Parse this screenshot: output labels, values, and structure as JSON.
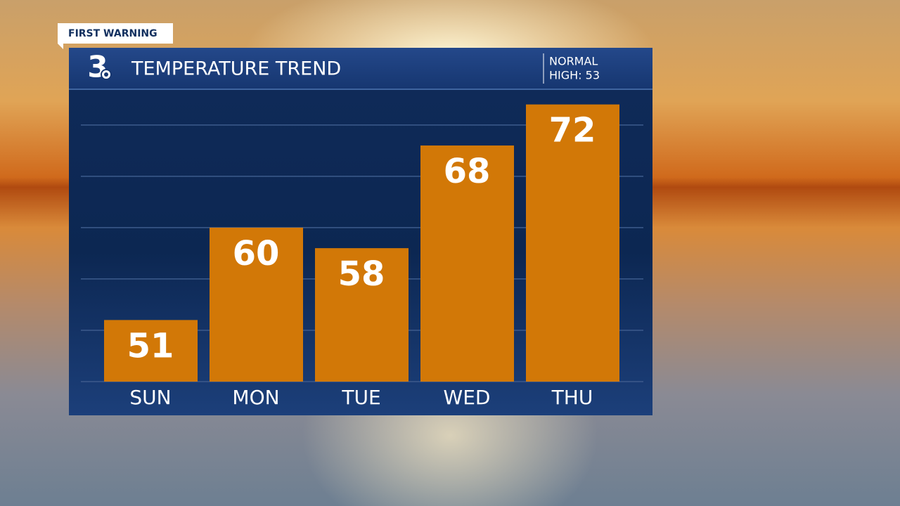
{
  "brand": "FIRST WARNING",
  "logo": "3",
  "chart_data": {
    "type": "bar",
    "title": "TEMPERATURE TREND",
    "annotations": [
      "NORMAL",
      "HIGH: 53"
    ],
    "categories": [
      "SUN",
      "MON",
      "TUE",
      "WED",
      "THU"
    ],
    "values": [
      51,
      60,
      58,
      68,
      72
    ],
    "color": "#d27807",
    "ylim": [
      45,
      73
    ],
    "yticks": [
      45,
      50,
      55,
      60,
      65,
      70
    ],
    "grid": true
  }
}
